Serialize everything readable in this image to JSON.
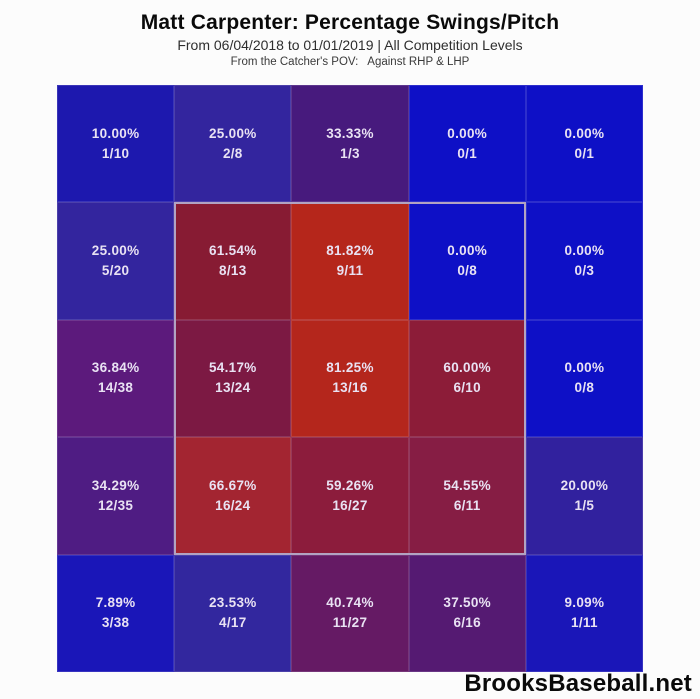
{
  "header": {
    "title": "Matt Carpenter: Percentage Swings/Pitch",
    "subtitle": "From 06/04/2018 to 01/01/2019 | All Competition Levels",
    "pov_line": "From the Catcher's POV:   Against RHP & LHP"
  },
  "footer": {
    "brand": "BrooksBaseball.net"
  },
  "colors": {
    "background": "#fcfcfc",
    "title_text": "#0a0a0a",
    "subtitle_text": "#2e2e2e",
    "cell_text": "#e9e2f3",
    "strike_zone_border": "#b2a3c2",
    "footer_text": "#0a0a0a",
    "scale_low": "#0e10c6",
    "scale_mid": "#5c1a7c",
    "scale_high": "#b5261b"
  },
  "chart_data": {
    "type": "heatmap",
    "title": "Matt Carpenter: Percentage Swings/Pitch",
    "subtitle": "From 06/04/2018 to 01/01/2019 | All Competition Levels",
    "pov": "From the Catcher's POV: Against RHP & LHP",
    "rows": 5,
    "cols": 5,
    "value_label": "swing percentage per pitch location (catcher's POV)",
    "color_scale": {
      "low_value": 0,
      "high_value": 100,
      "low": "#0e10c6",
      "mid": "#5c1a7c",
      "high": "#b5261b"
    },
    "strike_zone_cells": {
      "row_start": 1,
      "row_end": 3,
      "col_start": 1,
      "col_end": 3
    },
    "cells": [
      [
        {
          "pct": "10.00%",
          "frac": "1/10",
          "value": 10.0,
          "swings": 1,
          "pitches": 10,
          "color": "#1d18ae"
        },
        {
          "pct": "25.00%",
          "frac": "2/8",
          "value": 25.0,
          "swings": 2,
          "pitches": 8,
          "color": "#33259e"
        },
        {
          "pct": "33.33%",
          "frac": "1/3",
          "value": 33.33,
          "swings": 1,
          "pitches": 3,
          "color": "#471a7d"
        },
        {
          "pct": "0.00%",
          "frac": "0/1",
          "value": 0.0,
          "swings": 0,
          "pitches": 1,
          "color": "#0e10c6"
        },
        {
          "pct": "0.00%",
          "frac": "0/1",
          "value": 0.0,
          "swings": 0,
          "pitches": 1,
          "color": "#0e10c6"
        }
      ],
      [
        {
          "pct": "25.00%",
          "frac": "5/20",
          "value": 25.0,
          "swings": 5,
          "pitches": 20,
          "color": "#33259e"
        },
        {
          "pct": "61.54%",
          "frac": "8/13",
          "value": 61.54,
          "swings": 8,
          "pitches": 13,
          "color": "#871b33"
        },
        {
          "pct": "81.82%",
          "frac": "9/11",
          "value": 81.82,
          "swings": 9,
          "pitches": 11,
          "color": "#b5261b"
        },
        {
          "pct": "0.00%",
          "frac": "0/8",
          "value": 0.0,
          "swings": 0,
          "pitches": 8,
          "color": "#0e10c6"
        },
        {
          "pct": "0.00%",
          "frac": "0/3",
          "value": 0.0,
          "swings": 0,
          "pitches": 3,
          "color": "#0e10c6"
        }
      ],
      [
        {
          "pct": "36.84%",
          "frac": "14/38",
          "value": 36.84,
          "swings": 14,
          "pitches": 38,
          "color": "#5c1a7c"
        },
        {
          "pct": "54.17%",
          "frac": "13/24",
          "value": 54.17,
          "swings": 13,
          "pitches": 24,
          "color": "#7c1943"
        },
        {
          "pct": "81.25%",
          "frac": "13/16",
          "value": 81.25,
          "swings": 13,
          "pitches": 16,
          "color": "#b4261c"
        },
        {
          "pct": "60.00%",
          "frac": "6/10",
          "value": 60.0,
          "swings": 6,
          "pitches": 10,
          "color": "#8c1c38"
        },
        {
          "pct": "0.00%",
          "frac": "0/8",
          "value": 0.0,
          "swings": 0,
          "pitches": 8,
          "color": "#0e10c6"
        }
      ],
      [
        {
          "pct": "34.29%",
          "frac": "12/35",
          "value": 34.29,
          "swings": 12,
          "pitches": 35,
          "color": "#4f1c83"
        },
        {
          "pct": "66.67%",
          "frac": "16/24",
          "value": 66.67,
          "swings": 16,
          "pitches": 24,
          "color": "#a32531"
        },
        {
          "pct": "59.26%",
          "frac": "16/27",
          "value": 59.26,
          "swings": 16,
          "pitches": 27,
          "color": "#8c1c3c"
        },
        {
          "pct": "54.55%",
          "frac": "6/11",
          "value": 54.55,
          "swings": 6,
          "pitches": 11,
          "color": "#861d44"
        },
        {
          "pct": "20.00%",
          "frac": "1/5",
          "value": 20.0,
          "swings": 1,
          "pitches": 5,
          "color": "#31219e"
        }
      ],
      [
        {
          "pct": "7.89%",
          "frac": "3/38",
          "value": 7.89,
          "swings": 3,
          "pitches": 38,
          "color": "#1a16b8"
        },
        {
          "pct": "23.53%",
          "frac": "4/17",
          "value": 23.53,
          "swings": 4,
          "pitches": 17,
          "color": "#32279e"
        },
        {
          "pct": "40.74%",
          "frac": "11/27",
          "value": 40.74,
          "swings": 11,
          "pitches": 27,
          "color": "#651a64"
        },
        {
          "pct": "37.50%",
          "frac": "6/16",
          "value": 37.5,
          "swings": 6,
          "pitches": 16,
          "color": "#551a72"
        },
        {
          "pct": "9.09%",
          "frac": "1/11",
          "value": 9.09,
          "swings": 1,
          "pitches": 11,
          "color": "#1a16b8"
        }
      ]
    ]
  }
}
